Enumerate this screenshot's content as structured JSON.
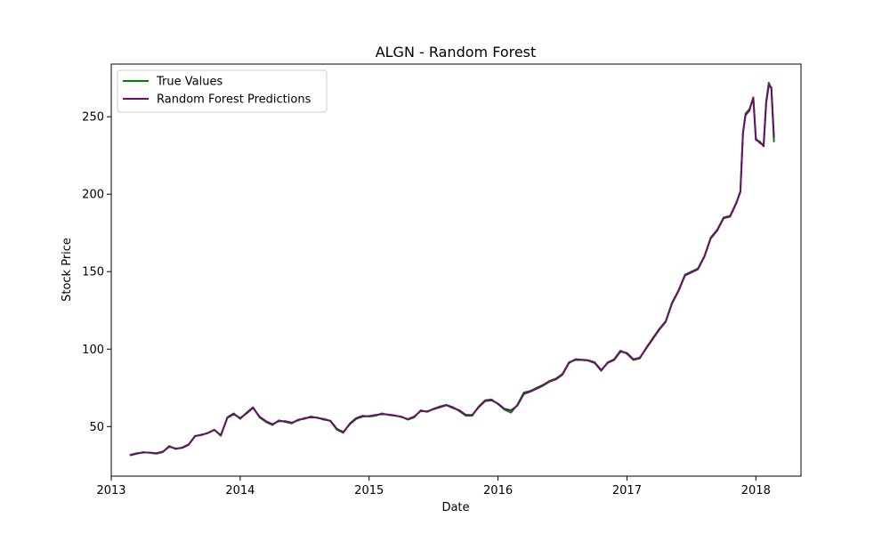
{
  "chart_data": {
    "type": "line",
    "title": "ALGN - Random Forest",
    "xlabel": "Date",
    "ylabel": "Stock Price",
    "xlim": [
      2013.0,
      2018.35
    ],
    "ylim": [
      18,
      284
    ],
    "x_ticks": [
      2013,
      2014,
      2015,
      2016,
      2017,
      2018
    ],
    "x_tick_labels": [
      "2013",
      "2014",
      "2015",
      "2016",
      "2017",
      "2018"
    ],
    "y_ticks": [
      50,
      100,
      150,
      200,
      250
    ],
    "y_tick_labels": [
      "50",
      "100",
      "150",
      "200",
      "250"
    ],
    "legend_position": "upper-left",
    "grid": false,
    "series": [
      {
        "name": "True Values",
        "color": "#008000",
        "points": [
          [
            2013.15,
            31.5
          ],
          [
            2013.2,
            32.5
          ],
          [
            2013.25,
            33.5
          ],
          [
            2013.3,
            33.0
          ],
          [
            2013.35,
            32.5
          ],
          [
            2013.4,
            33.5
          ],
          [
            2013.45,
            37.5
          ],
          [
            2013.5,
            35.5
          ],
          [
            2013.55,
            36.5
          ],
          [
            2013.6,
            38.5
          ],
          [
            2013.65,
            44.0
          ],
          [
            2013.7,
            44.5
          ],
          [
            2013.75,
            46.0
          ],
          [
            2013.8,
            48.0
          ],
          [
            2013.85,
            44.0
          ],
          [
            2013.9,
            56.0
          ],
          [
            2013.95,
            58.5
          ],
          [
            2014.0,
            55.0
          ],
          [
            2014.05,
            59.0
          ],
          [
            2014.1,
            62.5
          ],
          [
            2014.15,
            56.0
          ],
          [
            2014.2,
            53.0
          ],
          [
            2014.25,
            51.0
          ],
          [
            2014.3,
            54.0
          ],
          [
            2014.35,
            53.0
          ],
          [
            2014.4,
            52.0
          ],
          [
            2014.45,
            54.5
          ],
          [
            2014.5,
            55.0
          ],
          [
            2014.55,
            56.5
          ],
          [
            2014.6,
            55.5
          ],
          [
            2014.65,
            55.0
          ],
          [
            2014.7,
            53.5
          ],
          [
            2014.75,
            48.0
          ],
          [
            2014.8,
            46.0
          ],
          [
            2014.85,
            52.0
          ],
          [
            2014.9,
            55.5
          ],
          [
            2014.95,
            57.0
          ],
          [
            2015.0,
            56.5
          ],
          [
            2015.05,
            57.0
          ],
          [
            2015.1,
            58.5
          ],
          [
            2015.15,
            57.5
          ],
          [
            2015.2,
            57.0
          ],
          [
            2015.25,
            56.5
          ],
          [
            2015.3,
            54.5
          ],
          [
            2015.35,
            56.0
          ],
          [
            2015.4,
            60.5
          ],
          [
            2015.45,
            59.5
          ],
          [
            2015.5,
            61.5
          ],
          [
            2015.55,
            63.0
          ],
          [
            2015.6,
            64.0
          ],
          [
            2015.65,
            62.5
          ],
          [
            2015.7,
            60.0
          ],
          [
            2015.75,
            57.0
          ],
          [
            2015.8,
            57.0
          ],
          [
            2015.85,
            63.0
          ],
          [
            2015.9,
            67.0
          ],
          [
            2015.95,
            67.5
          ],
          [
            2016.0,
            64.5
          ],
          [
            2016.05,
            61.0
          ],
          [
            2016.1,
            59.0
          ],
          [
            2016.15,
            64.0
          ],
          [
            2016.2,
            72.0
          ],
          [
            2016.25,
            73.0
          ],
          [
            2016.3,
            75.0
          ],
          [
            2016.35,
            77.0
          ],
          [
            2016.4,
            79.5
          ],
          [
            2016.45,
            81.0
          ],
          [
            2016.5,
            84.0
          ],
          [
            2016.55,
            91.5
          ],
          [
            2016.6,
            93.0
          ],
          [
            2016.65,
            93.0
          ],
          [
            2016.7,
            92.5
          ],
          [
            2016.75,
            91.0
          ],
          [
            2016.8,
            86.0
          ],
          [
            2016.85,
            91.5
          ],
          [
            2016.9,
            93.5
          ],
          [
            2016.95,
            99.0
          ],
          [
            2017.0,
            97.0
          ],
          [
            2017.05,
            93.0
          ],
          [
            2017.1,
            94.0
          ],
          [
            2017.15,
            101.0
          ],
          [
            2017.2,
            107.0
          ],
          [
            2017.25,
            113.0
          ],
          [
            2017.3,
            118.0
          ],
          [
            2017.35,
            130.0
          ],
          [
            2017.4,
            138.0
          ],
          [
            2017.45,
            148.0
          ],
          [
            2017.5,
            150.0
          ],
          [
            2017.55,
            152.0
          ],
          [
            2017.6,
            160.0
          ],
          [
            2017.65,
            172.0
          ],
          [
            2017.7,
            177.0
          ],
          [
            2017.75,
            185.0
          ],
          [
            2017.8,
            186.0
          ],
          [
            2017.85,
            195.0
          ],
          [
            2017.88,
            202.0
          ],
          [
            2017.9,
            240.0
          ],
          [
            2017.92,
            252.0
          ],
          [
            2017.95,
            255.0
          ],
          [
            2017.98,
            262.0
          ],
          [
            2018.0,
            236.0
          ],
          [
            2018.03,
            233.0
          ],
          [
            2018.06,
            232.0
          ],
          [
            2018.08,
            260.0
          ],
          [
            2018.1,
            272.0
          ],
          [
            2018.12,
            268.0
          ],
          [
            2018.14,
            234.0
          ]
        ]
      },
      {
        "name": "Random Forest Predictions",
        "color": "#6a0f6a",
        "points": [
          [
            2013.15,
            31.8
          ],
          [
            2013.2,
            32.8
          ],
          [
            2013.25,
            33.2
          ],
          [
            2013.3,
            33.2
          ],
          [
            2013.35,
            32.8
          ],
          [
            2013.4,
            33.8
          ],
          [
            2013.45,
            37.0
          ],
          [
            2013.5,
            35.8
          ],
          [
            2013.55,
            36.2
          ],
          [
            2013.6,
            38.2
          ],
          [
            2013.65,
            43.8
          ],
          [
            2013.7,
            44.8
          ],
          [
            2013.75,
            45.8
          ],
          [
            2013.8,
            47.8
          ],
          [
            2013.85,
            44.5
          ],
          [
            2013.9,
            55.5
          ],
          [
            2013.95,
            58.0
          ],
          [
            2014.0,
            55.5
          ],
          [
            2014.05,
            58.5
          ],
          [
            2014.1,
            62.0
          ],
          [
            2014.15,
            56.5
          ],
          [
            2014.2,
            53.5
          ],
          [
            2014.25,
            51.5
          ],
          [
            2014.3,
            53.5
          ],
          [
            2014.35,
            53.5
          ],
          [
            2014.4,
            52.5
          ],
          [
            2014.45,
            54.0
          ],
          [
            2014.5,
            55.5
          ],
          [
            2014.55,
            56.0
          ],
          [
            2014.6,
            55.8
          ],
          [
            2014.65,
            54.5
          ],
          [
            2014.7,
            53.8
          ],
          [
            2014.75,
            48.5
          ],
          [
            2014.8,
            46.5
          ],
          [
            2014.85,
            51.5
          ],
          [
            2014.9,
            55.0
          ],
          [
            2014.95,
            56.5
          ],
          [
            2015.0,
            56.8
          ],
          [
            2015.05,
            57.5
          ],
          [
            2015.1,
            58.0
          ],
          [
            2015.15,
            57.8
          ],
          [
            2015.2,
            57.2
          ],
          [
            2015.25,
            56.2
          ],
          [
            2015.3,
            54.8
          ],
          [
            2015.35,
            56.5
          ],
          [
            2015.4,
            60.0
          ],
          [
            2015.45,
            59.8
          ],
          [
            2015.5,
            61.2
          ],
          [
            2015.55,
            62.5
          ],
          [
            2015.6,
            63.8
          ],
          [
            2015.65,
            62.0
          ],
          [
            2015.7,
            60.5
          ],
          [
            2015.75,
            57.5
          ],
          [
            2015.8,
            57.5
          ],
          [
            2015.85,
            62.5
          ],
          [
            2015.9,
            66.5
          ],
          [
            2015.95,
            67.0
          ],
          [
            2016.0,
            64.8
          ],
          [
            2016.05,
            61.5
          ],
          [
            2016.1,
            60.5
          ],
          [
            2016.15,
            63.5
          ],
          [
            2016.2,
            71.0
          ],
          [
            2016.25,
            72.5
          ],
          [
            2016.3,
            74.5
          ],
          [
            2016.35,
            76.5
          ],
          [
            2016.4,
            79.0
          ],
          [
            2016.45,
            80.5
          ],
          [
            2016.5,
            83.5
          ],
          [
            2016.55,
            91.0
          ],
          [
            2016.6,
            93.5
          ],
          [
            2016.65,
            93.2
          ],
          [
            2016.7,
            92.8
          ],
          [
            2016.75,
            91.5
          ],
          [
            2016.8,
            86.5
          ],
          [
            2016.85,
            91.0
          ],
          [
            2016.9,
            93.0
          ],
          [
            2016.95,
            98.5
          ],
          [
            2017.0,
            97.5
          ],
          [
            2017.05,
            93.5
          ],
          [
            2017.1,
            94.5
          ],
          [
            2017.15,
            100.5
          ],
          [
            2017.2,
            106.5
          ],
          [
            2017.25,
            112.5
          ],
          [
            2017.3,
            117.5
          ],
          [
            2017.35,
            129.5
          ],
          [
            2017.4,
            137.5
          ],
          [
            2017.45,
            147.5
          ],
          [
            2017.5,
            149.5
          ],
          [
            2017.55,
            151.5
          ],
          [
            2017.6,
            159.5
          ],
          [
            2017.65,
            171.5
          ],
          [
            2017.7,
            176.5
          ],
          [
            2017.75,
            184.5
          ],
          [
            2017.8,
            185.5
          ],
          [
            2017.85,
            194.5
          ],
          [
            2017.88,
            201.5
          ],
          [
            2017.9,
            239.0
          ],
          [
            2017.92,
            251.0
          ],
          [
            2017.95,
            254.0
          ],
          [
            2017.98,
            262.5
          ],
          [
            2018.0,
            235.0
          ],
          [
            2018.03,
            234.0
          ],
          [
            2018.06,
            231.0
          ],
          [
            2018.08,
            259.0
          ],
          [
            2018.1,
            270.0
          ],
          [
            2018.12,
            269.0
          ],
          [
            2018.14,
            237.0
          ]
        ]
      }
    ]
  }
}
